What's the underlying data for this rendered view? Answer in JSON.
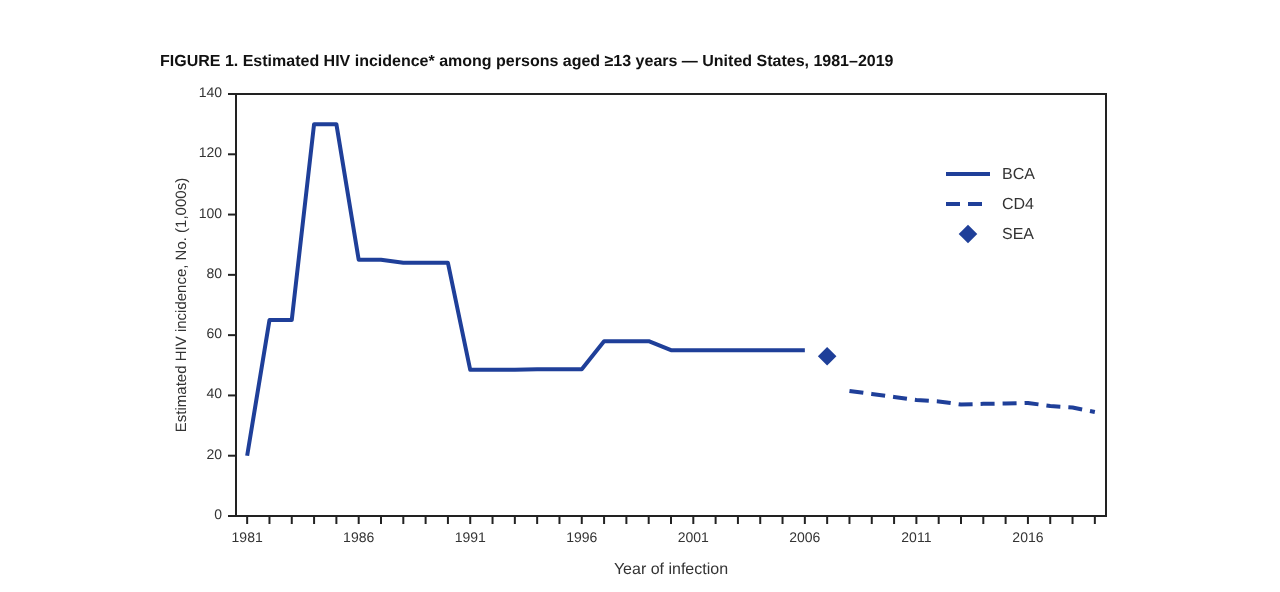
{
  "chart_data": {
    "type": "line",
    "title": "FIGURE 1. Estimated HIV incidence* among persons aged ≥13 years — United States, 1981–2019",
    "xlabel": "Year of infection",
    "ylabel": "Estimated HIV incidence, No. (1,000s)",
    "xlim": [
      1980.5,
      2019.5
    ],
    "ylim": [
      0,
      140
    ],
    "xticks": [
      1981,
      {
        "value": 1982,
        "label": null
      },
      {
        "value": 1983,
        "label": null
      },
      {
        "value": 1984,
        "label": null
      },
      {
        "value": 1985,
        "label": null
      },
      1986,
      {
        "value": 1987,
        "label": null
      },
      {
        "value": 1988,
        "label": null
      },
      {
        "value": 1989,
        "label": null
      },
      {
        "value": 1990,
        "label": null
      },
      1991,
      {
        "value": 1992,
        "label": null
      },
      {
        "value": 1993,
        "label": null
      },
      {
        "value": 1994,
        "label": null
      },
      {
        "value": 1995,
        "label": null
      },
      1996,
      {
        "value": 1997,
        "label": null
      },
      {
        "value": 1998,
        "label": null
      },
      {
        "value": 1999,
        "label": null
      },
      {
        "value": 2000,
        "label": null
      },
      2001,
      {
        "value": 2002,
        "label": null
      },
      {
        "value": 2003,
        "label": null
      },
      {
        "value": 2004,
        "label": null
      },
      {
        "value": 2005,
        "label": null
      },
      2006,
      {
        "value": 2007,
        "label": null
      },
      {
        "value": 2008,
        "label": null
      },
      {
        "value": 2009,
        "label": null
      },
      {
        "value": 2010,
        "label": null
      },
      2011,
      {
        "value": 2012,
        "label": null
      },
      {
        "value": 2013,
        "label": null
      },
      {
        "value": 2014,
        "label": null
      },
      {
        "value": 2015,
        "label": null
      },
      2016,
      {
        "value": 2017,
        "label": null
      },
      {
        "value": 2018,
        "label": null
      },
      {
        "value": 2019,
        "label": null
      }
    ],
    "yticks": [
      0,
      20,
      40,
      60,
      80,
      100,
      120,
      140
    ],
    "legend": "top right",
    "grid": false,
    "series": [
      {
        "name": "BCA",
        "type": "line",
        "color": "#1f3f99",
        "line_style": "solid",
        "x": [
          1981,
          1982,
          1983,
          1984,
          1985,
          1986,
          1987,
          1988,
          1989,
          1990,
          1991,
          1992,
          1993,
          1994,
          1995,
          1996,
          1997,
          1998,
          1999,
          2000,
          2001,
          2002,
          2003,
          2004,
          2005,
          2006
        ],
        "values": [
          20,
          65,
          65,
          130,
          130,
          85,
          85,
          84,
          84,
          84,
          48.5,
          48.5,
          48.5,
          48.7,
          48.7,
          48.7,
          58,
          58,
          58,
          55,
          55,
          55,
          55,
          55,
          55,
          55
        ]
      },
      {
        "name": "CD4",
        "type": "line",
        "color": "#1f3f99",
        "line_style": "dashed",
        "x": [
          2008,
          2009,
          2010,
          2011,
          2012,
          2013,
          2014,
          2015,
          2016,
          2017,
          2018,
          2019
        ],
        "values": [
          41.5,
          40.5,
          39.5,
          38.5,
          38,
          37,
          37.2,
          37.3,
          37.5,
          36.5,
          36,
          34.5
        ]
      },
      {
        "name": "SEA",
        "type": "scatter",
        "color": "#1f3f99",
        "marker": "diamond",
        "x": [
          2007
        ],
        "values": [
          53
        ]
      }
    ]
  }
}
